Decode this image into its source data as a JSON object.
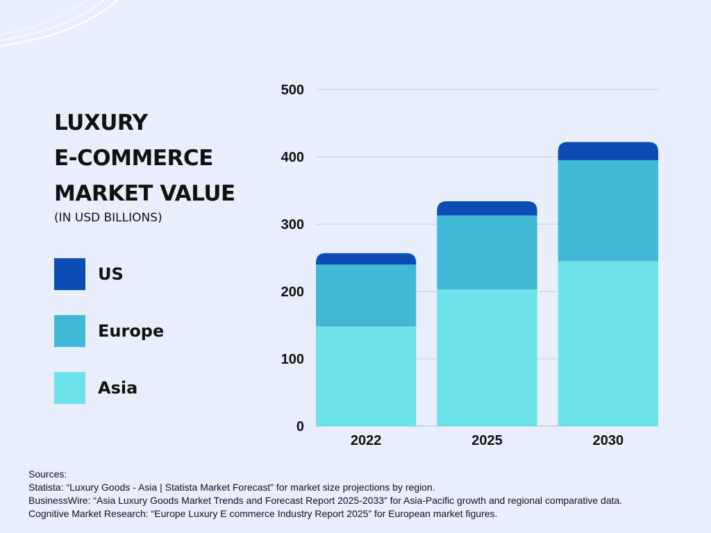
{
  "chart_data": {
    "type": "bar",
    "stacked": true,
    "title": "LUXURY E-COMMERCE MARKET VALUE",
    "title_lines": [
      "LUXURY",
      "E-COMMERCE",
      "MARKET VALUE"
    ],
    "subtitle": "(IN USD BILLIONS)",
    "categories": [
      "2022",
      "2025",
      "2030"
    ],
    "series": [
      {
        "name": "Asia",
        "color": "#6be3e8",
        "values": [
          148,
          203,
          245
        ]
      },
      {
        "name": "Europe",
        "color": "#40b9d6",
        "values": [
          92,
          110,
          150
        ]
      },
      {
        "name": "US",
        "color": "#0b4db5",
        "values": [
          17,
          21,
          27
        ]
      }
    ],
    "legend_order": [
      "US",
      "Europe",
      "Asia"
    ],
    "ylim": [
      0,
      500
    ],
    "yticks": [
      0,
      100,
      200,
      300,
      400,
      500
    ],
    "xlabel": "",
    "ylabel": "",
    "grid": true,
    "legend_position": "left"
  },
  "sources": {
    "heading": "Sources:",
    "lines": [
      "Statista: “Luxury Goods - Asia | Statista Market Forecast” for market size projections by region.",
      "BusinessWire: “Asia Luxury Goods Market Trends and Forecast Report 2025-2033” for Asia-Pacific growth and regional comparative data.",
      "Cognitive Market Research: “Europe Luxury E commerce Industry Report 2025” for European market figures."
    ]
  }
}
